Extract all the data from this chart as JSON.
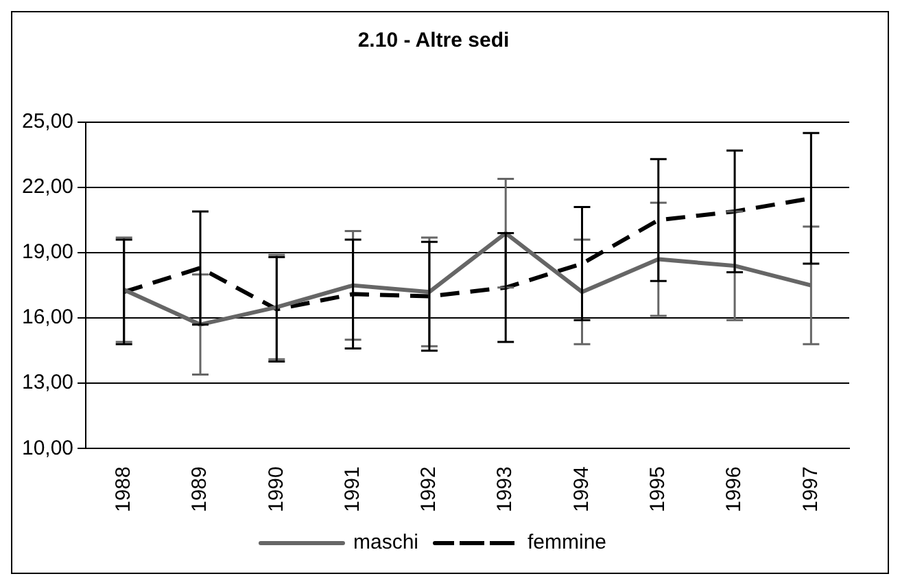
{
  "chart_data": {
    "type": "line",
    "title": "2.10 - Altre sedi",
    "categories": [
      "1988",
      "1989",
      "1990",
      "1991",
      "1992",
      "1993",
      "1994",
      "1995",
      "1996",
      "1997"
    ],
    "series": [
      {
        "name": "maschi",
        "color": "#666666",
        "line_style": "solid",
        "values": [
          17.3,
          15.7,
          16.5,
          17.5,
          17.2,
          19.9,
          17.2,
          18.7,
          18.4,
          17.5
        ],
        "errors": [
          2.4,
          2.3,
          2.4,
          2.5,
          2.5,
          2.5,
          2.4,
          2.6,
          2.5,
          2.7
        ]
      },
      {
        "name": "femmine",
        "color": "#000000",
        "line_style": "dashed",
        "values": [
          17.2,
          18.3,
          16.4,
          17.1,
          17.0,
          17.4,
          18.5,
          20.5,
          20.9,
          21.5
        ],
        "errors": [
          2.4,
          2.6,
          2.4,
          2.5,
          2.5,
          2.5,
          2.6,
          2.8,
          2.8,
          3.0
        ]
      }
    ],
    "ylim": [
      10,
      25
    ],
    "yticks": [
      {
        "value": 10,
        "label": "10,00"
      },
      {
        "value": 13,
        "label": "13,00"
      },
      {
        "value": 16,
        "label": "16,00"
      },
      {
        "value": 19,
        "label": "19,00"
      },
      {
        "value": 22,
        "label": "22,00"
      },
      {
        "value": 25,
        "label": "25,00"
      }
    ],
    "grid": "y",
    "legend": "bottom",
    "marker": "none"
  }
}
